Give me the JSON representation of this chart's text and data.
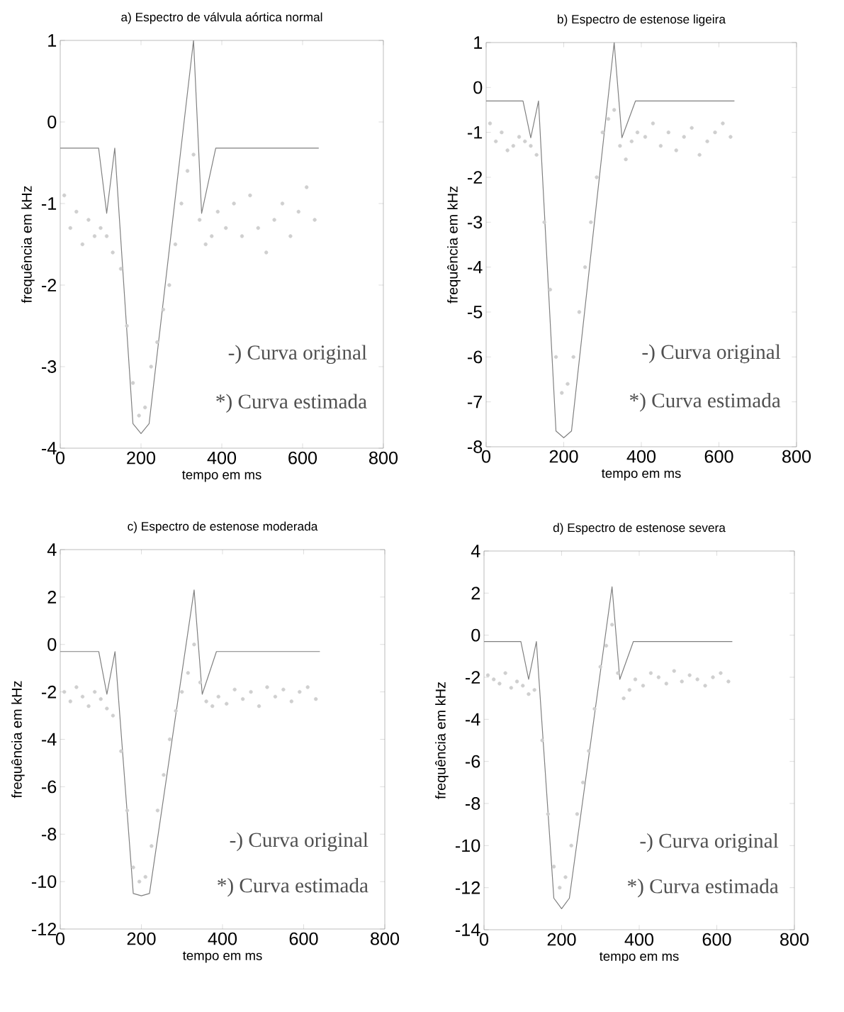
{
  "chart_data": [
    {
      "type": "line",
      "title": "a) Espectro de válvula aórtica normal",
      "xlabel": "tempo em ms",
      "ylabel": "frequência em kHz",
      "xlim": [
        0,
        800
      ],
      "ylim": [
        -4,
        1
      ],
      "xticks": [
        0,
        200,
        400,
        600,
        800
      ],
      "yticks": [
        -4,
        -3,
        -2,
        -1,
        0,
        1
      ],
      "annotations": [
        "-) Curva original",
        "*) Curva estimada"
      ],
      "series": [
        {
          "color": "#808080",
          "x": [
            0,
            95,
            115,
            135,
            180,
            200,
            220,
            330,
            350,
            385,
            640
          ],
          "values": [
            -0.32,
            -0.32,
            -1.12,
            -0.32,
            -3.7,
            -3.82,
            -3.7,
            1.0,
            -1.12,
            -0.32,
            -0.32
          ]
        },
        {
          "type": "scatter",
          "marker": "circle",
          "color": "#cfcfcf",
          "x": [
            10,
            25,
            40,
            55,
            70,
            85,
            100,
            115,
            130,
            150,
            165,
            180,
            195,
            210,
            225,
            240,
            255,
            270,
            285,
            300,
            315,
            330,
            345,
            360,
            375,
            390,
            410,
            430,
            450,
            470,
            490,
            510,
            530,
            550,
            570,
            590,
            610,
            630
          ],
          "values": [
            -0.9,
            -1.3,
            -1.1,
            -1.5,
            -1.2,
            -1.4,
            -1.3,
            -1.4,
            -1.6,
            -1.8,
            -2.5,
            -3.2,
            -3.6,
            -3.5,
            -3.0,
            -2.7,
            -2.3,
            -2.0,
            -1.5,
            -1.0,
            -0.6,
            -0.4,
            -1.2,
            -1.5,
            -1.4,
            -1.1,
            -1.3,
            -1.0,
            -1.4,
            -0.9,
            -1.3,
            -1.6,
            -1.2,
            -1.0,
            -1.4,
            -1.1,
            -0.8,
            -1.2
          ]
        }
      ]
    },
    {
      "type": "line",
      "title": "b) Espectro de estenose ligeira",
      "xlabel": "tempo em ms",
      "ylabel": "frequência em kHz",
      "xlim": [
        0,
        800
      ],
      "ylim": [
        -8,
        1
      ],
      "xticks": [
        0,
        200,
        400,
        600,
        800
      ],
      "yticks": [
        -8,
        -7,
        -6,
        -5,
        -4,
        -3,
        -2,
        -1,
        0,
        1
      ],
      "annotations": [
        "-) Curva original",
        "*) Curva estimada"
      ],
      "series": [
        {
          "color": "#808080",
          "x": [
            0,
            95,
            115,
            135,
            180,
            200,
            220,
            330,
            350,
            385,
            640
          ],
          "values": [
            -0.3,
            -0.3,
            -1.12,
            -0.3,
            -7.65,
            -7.8,
            -7.65,
            1.0,
            -1.12,
            -0.3,
            -0.3
          ]
        },
        {
          "type": "scatter",
          "marker": "circle",
          "color": "#cfcfcf",
          "x": [
            10,
            25,
            40,
            55,
            70,
            85,
            100,
            115,
            130,
            150,
            165,
            180,
            195,
            210,
            225,
            240,
            255,
            270,
            285,
            300,
            315,
            330,
            345,
            360,
            375,
            390,
            410,
            430,
            450,
            470,
            490,
            510,
            530,
            550,
            570,
            590,
            610,
            630
          ],
          "values": [
            -0.8,
            -1.2,
            -1.0,
            -1.4,
            -1.3,
            -1.1,
            -1.2,
            -1.3,
            -1.5,
            -3.0,
            -4.5,
            -6.0,
            -6.8,
            -6.6,
            -6.0,
            -5.0,
            -4.0,
            -3.0,
            -2.0,
            -1.0,
            -0.7,
            -0.5,
            -1.3,
            -1.6,
            -1.2,
            -1.0,
            -1.1,
            -0.8,
            -1.3,
            -1.0,
            -1.4,
            -1.1,
            -0.9,
            -1.5,
            -1.2,
            -1.0,
            -0.8,
            -1.1
          ]
        }
      ]
    },
    {
      "type": "line",
      "title": "c) Espectro de estenose moderada",
      "xlabel": "tempo em ms",
      "ylabel": "frequência em kHz",
      "xlim": [
        0,
        800
      ],
      "ylim": [
        -12,
        4
      ],
      "xticks": [
        0,
        200,
        400,
        600,
        800
      ],
      "yticks": [
        -12,
        -10,
        -8,
        -6,
        -4,
        -2,
        0,
        2,
        4
      ],
      "annotations": [
        "-) Curva original",
        "*) Curva estimada"
      ],
      "series": [
        {
          "color": "#808080",
          "x": [
            0,
            95,
            115,
            135,
            180,
            200,
            220,
            330,
            350,
            385,
            640
          ],
          "values": [
            -0.3,
            -0.3,
            -2.1,
            -0.3,
            -10.5,
            -10.6,
            -10.5,
            2.3,
            -2.1,
            -0.3,
            -0.3
          ]
        },
        {
          "type": "scatter",
          "marker": "circle",
          "color": "#cfcfcf",
          "x": [
            10,
            25,
            40,
            55,
            70,
            85,
            100,
            115,
            130,
            150,
            165,
            180,
            195,
            210,
            225,
            240,
            255,
            270,
            285,
            300,
            315,
            330,
            345,
            360,
            375,
            390,
            410,
            430,
            450,
            470,
            490,
            510,
            530,
            550,
            570,
            590,
            610,
            630
          ],
          "values": [
            -2.0,
            -2.4,
            -1.8,
            -2.2,
            -2.6,
            -2.0,
            -2.3,
            -2.7,
            -3.0,
            -4.5,
            -7.0,
            -9.4,
            -10.0,
            -9.8,
            -8.5,
            -7.0,
            -5.5,
            -4.0,
            -2.8,
            -2.0,
            -1.2,
            0.0,
            -1.6,
            -2.4,
            -2.6,
            -2.2,
            -2.5,
            -1.9,
            -2.3,
            -2.0,
            -2.6,
            -1.8,
            -2.2,
            -1.9,
            -2.4,
            -2.0,
            -1.8,
            -2.3
          ]
        }
      ]
    },
    {
      "type": "line",
      "title": "d) Espectro de estenose severa",
      "xlabel": "tempo em ms",
      "ylabel": "frequência em kHz",
      "xlim": [
        0,
        800
      ],
      "ylim": [
        -14,
        4
      ],
      "xticks": [
        0,
        200,
        400,
        600,
        800
      ],
      "yticks": [
        -14,
        -12,
        -10,
        -8,
        -6,
        -4,
        -2,
        0,
        2,
        4
      ],
      "annotations": [
        "-) Curva original",
        "*) Curva estimada"
      ],
      "series": [
        {
          "color": "#808080",
          "x": [
            0,
            95,
            115,
            135,
            180,
            200,
            220,
            330,
            350,
            385,
            640
          ],
          "values": [
            -0.3,
            -0.3,
            -2.1,
            -0.3,
            -12.5,
            -13.0,
            -12.5,
            2.3,
            -2.1,
            -0.3,
            -0.3
          ]
        },
        {
          "type": "scatter",
          "marker": "circle",
          "color": "#cfcfcf",
          "x": [
            10,
            25,
            40,
            55,
            70,
            85,
            100,
            115,
            130,
            150,
            165,
            180,
            195,
            210,
            225,
            240,
            255,
            270,
            285,
            300,
            315,
            330,
            345,
            360,
            375,
            390,
            410,
            430,
            450,
            470,
            490,
            510,
            530,
            550,
            570,
            590,
            610,
            630
          ],
          "values": [
            -1.9,
            -2.1,
            -2.3,
            -1.8,
            -2.5,
            -2.2,
            -2.4,
            -2.8,
            -2.6,
            -5.0,
            -8.5,
            -11.0,
            -12.0,
            -11.5,
            -10.0,
            -8.5,
            -7.0,
            -5.5,
            -3.5,
            -1.5,
            -0.5,
            0.5,
            -1.8,
            -3.0,
            -2.6,
            -2.1,
            -2.4,
            -1.8,
            -2.0,
            -2.3,
            -1.7,
            -2.2,
            -1.9,
            -2.1,
            -2.4,
            -2.0,
            -1.8,
            -2.2
          ]
        }
      ]
    }
  ]
}
